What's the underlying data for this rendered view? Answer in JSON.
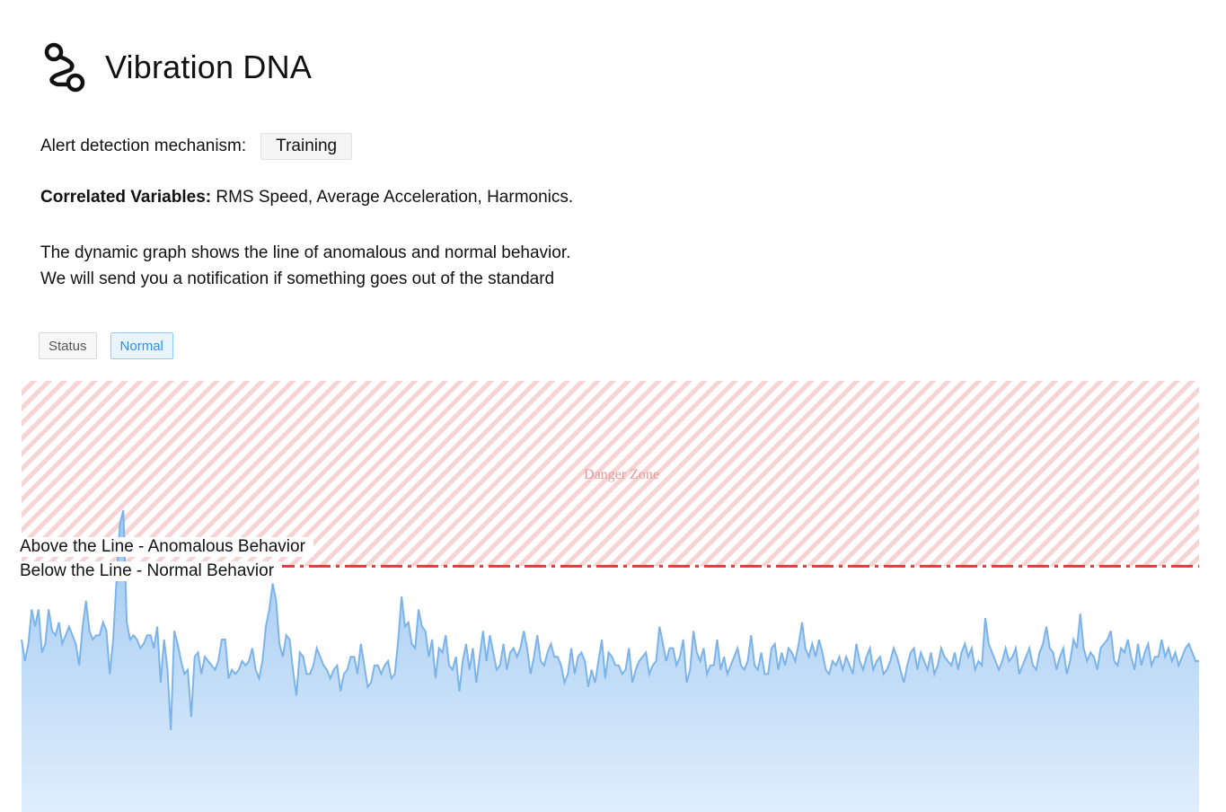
{
  "header": {
    "title": "Vibration DNA",
    "icon": "route-icon"
  },
  "alert": {
    "label": "Alert detection mechanism:",
    "button_label": "Training"
  },
  "correlated": {
    "label": "Correlated Variables:",
    "value": " RMS Speed, Average Acceleration, Harmonics."
  },
  "description": {
    "line1": "The dynamic graph shows the line of anomalous and normal behavior.",
    "line2": "We will send you a notification if something goes out of the standard"
  },
  "status": {
    "label": "Status",
    "value": "Normal"
  },
  "colors": {
    "series": "#7cb4ea",
    "threshold": "#e53935",
    "danger_stripe": "#f6c9c9",
    "danger_text": "#e59a9a"
  },
  "chart_data": {
    "type": "area",
    "danger_zone_label": "Danger Zone",
    "threshold_labels": {
      "above": "Above the Line - Anomalous Behavior",
      "below": "Below the Line - Normal Behavior"
    },
    "grid": false,
    "y_range": [
      0,
      100
    ],
    "threshold": 57,
    "values": [
      40,
      35,
      39,
      47,
      43,
      47,
      37,
      39,
      47,
      42,
      41,
      44,
      39,
      41,
      43,
      41,
      39,
      34,
      43,
      49,
      42,
      40,
      41,
      41,
      44,
      42,
      32,
      40,
      54,
      67,
      70,
      44,
      40,
      41,
      40,
      38,
      39,
      41,
      41,
      38,
      43,
      30,
      40,
      33,
      19,
      42,
      39,
      35,
      32,
      33,
      22,
      36,
      37,
      32,
      36,
      35,
      34,
      33,
      35,
      40,
      40,
      31,
      33,
      32,
      33,
      35,
      34,
      35,
      38,
      33,
      31,
      35,
      43,
      47,
      53,
      49,
      39,
      36,
      41,
      40,
      33,
      27,
      37,
      36,
      32,
      32,
      34,
      38,
      36,
      34,
      33,
      31,
      33,
      34,
      28,
      32,
      33,
      36,
      36,
      32,
      39,
      34,
      29,
      30,
      34,
      34,
      32,
      34,
      35,
      31,
      32,
      40,
      50,
      43,
      44,
      39,
      38,
      47,
      43,
      42,
      36,
      40,
      31,
      38,
      37,
      41,
      34,
      33,
      36,
      28,
      35,
      39,
      33,
      38,
      30,
      36,
      42,
      35,
      41,
      37,
      33,
      34,
      39,
      33,
      37,
      38,
      36,
      38,
      42,
      38,
      32,
      36,
      41,
      35,
      34,
      37,
      39,
      36,
      36,
      34,
      30,
      32,
      38,
      32,
      36,
      37,
      35,
      29,
      33,
      30,
      35,
      40,
      31,
      37,
      36,
      34,
      34,
      32,
      33,
      38,
      30,
      33,
      35,
      36,
      37,
      32,
      34,
      35,
      43,
      39,
      35,
      38,
      38,
      34,
      36,
      40,
      30,
      33,
      42,
      37,
      35,
      38,
      32,
      34,
      34,
      40,
      33,
      36,
      32,
      34,
      36,
      38,
      34,
      33,
      35,
      41,
      34,
      33,
      37,
      32,
      32,
      38,
      39,
      33,
      37,
      34,
      38,
      37,
      35,
      39,
      44,
      38,
      36,
      39,
      36,
      40,
      37,
      33,
      32,
      35,
      34,
      36,
      33,
      36,
      34,
      32,
      39,
      35,
      33,
      36,
      38,
      33,
      35,
      36,
      32,
      33,
      35,
      38,
      36,
      33,
      30,
      34,
      37,
      38,
      33,
      37,
      35,
      33,
      37,
      32,
      34,
      38,
      36,
      35,
      34,
      37,
      33,
      37,
      39,
      36,
      38,
      33,
      35,
      34,
      45,
      39,
      37,
      35,
      33,
      35,
      38,
      35,
      36,
      38,
      32,
      34,
      36,
      38,
      34,
      33,
      37,
      39,
      43,
      38,
      37,
      33,
      36,
      38,
      32,
      35,
      40,
      38,
      46,
      38,
      35,
      37,
      36,
      33,
      38,
      39,
      40,
      42,
      35,
      34,
      38,
      37,
      40,
      36,
      33,
      39,
      34,
      37,
      39,
      34,
      36,
      36,
      40,
      36,
      38,
      35,
      37,
      34,
      36,
      38,
      39,
      37,
      35,
      35
    ]
  }
}
